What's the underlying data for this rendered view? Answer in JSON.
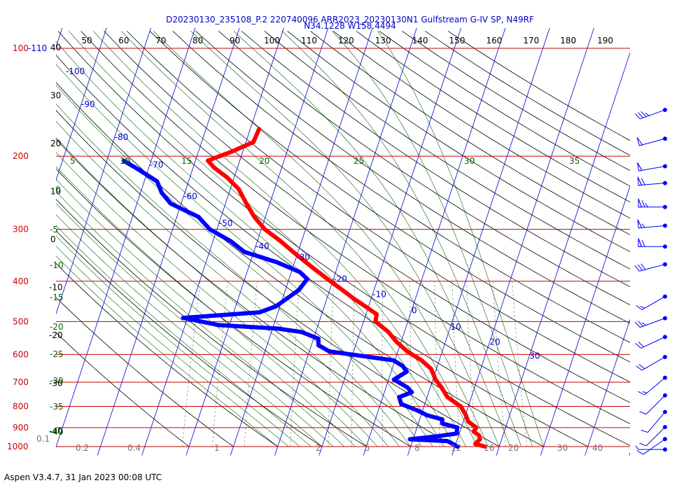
{
  "header": {
    "line1": "D20230130_235108_P.2 220740096 ARR2023_20230130N1 Gulfstream G-IV SP, N49RF",
    "line2": "N34.1228 W158.4494"
  },
  "footer": "Aspen V3.4.7, 31 Jan 2023  00:08 UTC",
  "colors": {
    "temperature": "#ff0000",
    "dewpoint": "#0000ff",
    "isobar": "#cc0000",
    "isotherm": "#0000cc",
    "dry_adiabat": "#000000",
    "moist_adiabat": "#006600",
    "mixing_ratio": "#777777",
    "title": "#0000cc"
  },
  "chart_data": {
    "type": "skew-t log-p",
    "pressure_axis": {
      "unit": "hPa",
      "scale": "log",
      "range": [
        110,
        1000
      ],
      "tick_labels": [
        "100-110",
        "200",
        "300",
        "400",
        "500",
        "600",
        "700",
        "800",
        "900",
        "1000"
      ]
    },
    "top_axis_ticks": [
      "50",
      "60",
      "70",
      "80",
      "90",
      "100",
      "110",
      "120",
      "130",
      "140",
      "150",
      "160",
      "170",
      "180",
      "190"
    ],
    "left_axis_ticks": [
      "40",
      "30",
      "20",
      "10",
      "0",
      "-10",
      "-20",
      "-30",
      "-40"
    ],
    "isotherm_labels": [
      "-100",
      "-90",
      "-80",
      "-70",
      "-60",
      "-50",
      "-40",
      "-30",
      "-20",
      "-10",
      "0",
      "10",
      "20",
      "30"
    ],
    "moist_adiabat_labels": [
      "5",
      "10",
      "15",
      "20",
      "25",
      "30",
      "35"
    ],
    "moist_left_labels": [
      "0",
      "-5",
      "-10",
      "-15",
      "-20",
      "-25",
      "-30",
      "-35",
      "-40"
    ],
    "mixing_ratio_labels": [
      "0.1",
      "0.2",
      "0.4",
      "1",
      "2",
      "5",
      "8",
      "12",
      "16",
      "20",
      "30",
      "40"
    ],
    "temperature_profile": {
      "name": "Temperature",
      "p_hPa": [
        1000,
        985,
        960,
        940,
        920,
        900,
        870,
        840,
        800,
        760,
        720,
        690,
        650,
        620,
        590,
        560,
        530,
        500,
        480,
        460,
        440,
        420,
        400,
        370,
        340,
        320,
        300,
        280,
        260,
        240,
        225,
        213,
        205,
        195,
        185,
        172
      ],
      "T_C": [
        26.8,
        24.4,
        25.1,
        24.6,
        23.1,
        23.4,
        21.1,
        20.1,
        18.3,
        14.6,
        12.5,
        10.6,
        8.8,
        6.0,
        2.1,
        -1.0,
        -3.6,
        -7.3,
        -7.6,
        -10.7,
        -14.0,
        -17.1,
        -20.5,
        -25.7,
        -31.1,
        -34.8,
        -39.2,
        -42.5,
        -45.3,
        -48.1,
        -51.6,
        -55.3,
        -57.2,
        -52.5,
        -48.3,
        -48.0
      ]
    },
    "dewpoint_profile": {
      "name": "Dewpoint",
      "p_hPa": [
        1000,
        985,
        970,
        960,
        945,
        930,
        900,
        880,
        860,
        840,
        820,
        790,
        760,
        740,
        720,
        690,
        660,
        640,
        620,
        610,
        590,
        570,
        550,
        530,
        520,
        510,
        490,
        475,
        460,
        445,
        420,
        395,
        380,
        360,
        340,
        320,
        300,
        280,
        260,
        245,
        230,
        215,
        205
      ],
      "Td_C": [
        20.6,
        19.3,
        17.9,
        9.3,
        15.1,
        19.4,
        19.1,
        15.4,
        15.1,
        11.3,
        9.0,
        4.7,
        3.7,
        6.2,
        4.8,
        1.2,
        3.5,
        2.2,
        -0.3,
        -5.3,
        -15.5,
        -18.4,
        -18.9,
        -23.2,
        -28.9,
        -42.4,
        -51.0,
        -34.1,
        -31.0,
        -29.5,
        -27.0,
        -25.9,
        -28.1,
        -34.0,
        -42.1,
        -46.1,
        -51.6,
        -55.1,
        -62.4,
        -65.2,
        -67.1,
        -72.3,
        -76.2
      ]
    },
    "wind_profile": {
      "levels_hPa": [
        150,
        176,
        205,
        225,
        257,
        285,
        320,
        353,
        422,
        476,
        528,
        590,
        662,
        730,
        800,
        870,
        930,
        985
      ],
      "speed_kt": [
        35,
        50,
        60,
        70,
        75,
        65,
        70,
        30,
        15,
        25,
        20,
        20,
        15,
        10,
        10,
        10,
        10,
        5
      ],
      "dir_deg": [
        250,
        255,
        260,
        265,
        270,
        265,
        270,
        255,
        240,
        250,
        245,
        240,
        230,
        225,
        220,
        225,
        235,
        270
      ]
    }
  }
}
